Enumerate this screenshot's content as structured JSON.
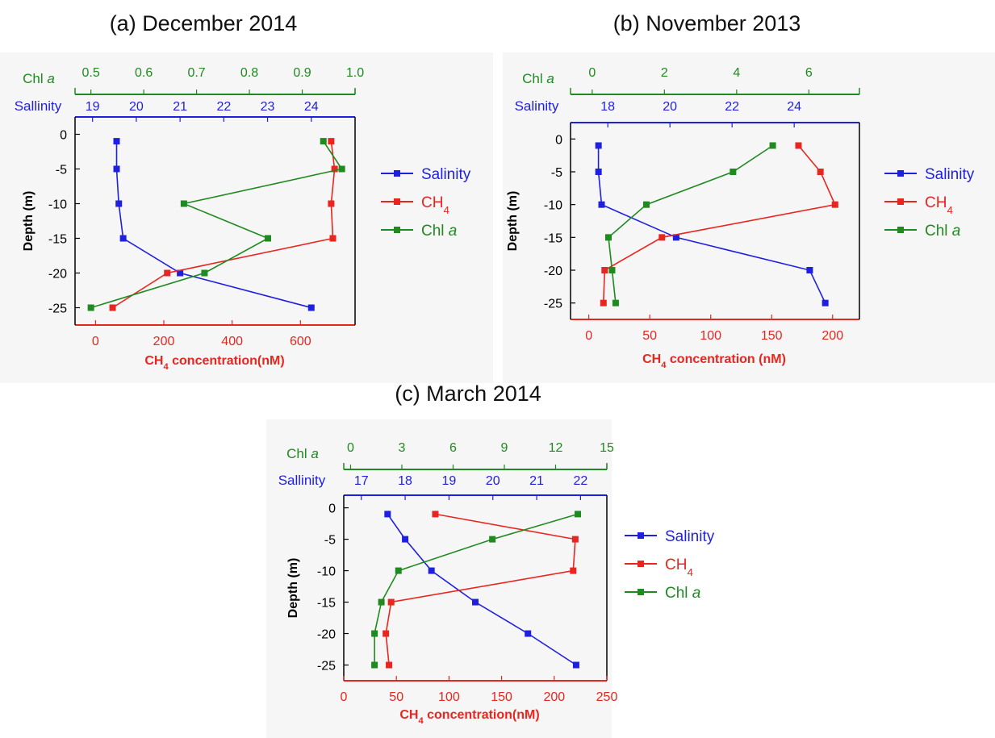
{
  "colors": {
    "salinity": "#1f1fe0",
    "ch4": "#e8261f",
    "chl": "#1f8a1f",
    "frame": "#000000"
  },
  "chart_data": [
    {
      "type": "line",
      "panel_title": "(a) December 2014",
      "xlabel": "CH4 concentration(nM)",
      "ylabel": "Depth (m)",
      "xlim": [
        -60,
        760
      ],
      "xticks": [
        0,
        200,
        400,
        600
      ],
      "ylim": [
        -27.5,
        2.5
      ],
      "yticks": [
        0,
        -5,
        -10,
        -15,
        -20,
        -25
      ],
      "salinity_axis": {
        "label": "Sallinity",
        "lim": [
          18.6,
          25.0
        ],
        "ticks": [
          19,
          20,
          21,
          22,
          23,
          24
        ]
      },
      "chl_axis": {
        "label": "Chl a",
        "lim": [
          0.47,
          1.0
        ],
        "ticks": [
          0.5,
          0.6,
          0.7,
          0.8,
          0.9,
          1.0
        ]
      },
      "legend": [
        "Salinity",
        "CH4",
        "Chl a"
      ],
      "series": [
        {
          "name": "Salinity",
          "axis": "salinity",
          "x": [
            19.55,
            19.55,
            19.6,
            19.7,
            21.0,
            24.0
          ],
          "y": [
            -1,
            -5,
            -10,
            -15,
            -20,
            -25
          ]
        },
        {
          "name": "CH4",
          "axis": "ch4",
          "x": [
            690,
            700,
            690,
            695,
            210,
            50
          ],
          "y": [
            -1,
            -5,
            -10,
            -15,
            -20,
            -25
          ]
        },
        {
          "name": "Chl a",
          "axis": "chl",
          "x": [
            0.94,
            0.975,
            0.676,
            0.835,
            0.715,
            0.5
          ],
          "y": [
            -1,
            -5,
            -10,
            -15,
            -20,
            -25
          ]
        }
      ]
    },
    {
      "type": "line",
      "panel_title": "(b) November 2013",
      "xlabel": "CH4 concentration (nM)",
      "ylabel": "Depth (m)",
      "xlim": [
        -15,
        222
      ],
      "xticks": [
        0,
        50,
        100,
        150,
        200
      ],
      "ylim": [
        -27.5,
        2.5
      ],
      "yticks": [
        0,
        -5,
        -10,
        -15,
        -20,
        -25
      ],
      "salinity_axis": {
        "label": "Salinity",
        "lim": [
          16.8,
          26.1
        ],
        "ticks": [
          18,
          20,
          22,
          24
        ]
      },
      "chl_axis": {
        "label": "Chl a",
        "lim": [
          -0.6,
          7.4
        ],
        "ticks": [
          0,
          2,
          4,
          6
        ]
      },
      "legend": [
        "Salinity",
        "CH4",
        "Chl a"
      ],
      "series": [
        {
          "name": "Salinity",
          "axis": "salinity",
          "x": [
            17.7,
            17.7,
            17.8,
            20.2,
            24.5,
            25.0
          ],
          "y": [
            -1,
            -5,
            -10,
            -15,
            -20,
            -25
          ]
        },
        {
          "name": "CH4",
          "axis": "ch4",
          "x": [
            172,
            190,
            202,
            60,
            13,
            12
          ],
          "y": [
            -1,
            -5,
            -10,
            -15,
            -20,
            -25
          ]
        },
        {
          "name": "Chl a",
          "axis": "chl",
          "x": [
            5.0,
            3.9,
            1.5,
            0.45,
            0.55,
            0.65
          ],
          "y": [
            -1,
            -5,
            -10,
            -15,
            -20,
            -25
          ]
        }
      ]
    },
    {
      "type": "line",
      "panel_title": "(c) March 2014",
      "xlabel": "CH4 concentration(nM)",
      "ylabel": "Depth (m)",
      "xlim": [
        0,
        250
      ],
      "xticks": [
        0,
        50,
        100,
        150,
        200,
        250
      ],
      "ylim": [
        -27.5,
        2.0
      ],
      "yticks": [
        0,
        -5,
        -10,
        -15,
        -20,
        -25
      ],
      "salinity_axis": {
        "label": "Sallinity",
        "lim": [
          16.6,
          22.6
        ],
        "ticks": [
          17,
          18,
          19,
          20,
          21,
          22
        ]
      },
      "chl_axis": {
        "label": "Chl a",
        "lim": [
          -0.4,
          15.0
        ],
        "ticks": [
          0,
          3,
          6,
          9,
          12,
          15
        ]
      },
      "legend": [
        "Salinity",
        "CH4",
        "Chl a"
      ],
      "series": [
        {
          "name": "Salinity",
          "axis": "salinity",
          "x": [
            17.6,
            18.0,
            18.6,
            19.6,
            20.8,
            21.9
          ],
          "y": [
            -1,
            -5,
            -10,
            -15,
            -20,
            -25
          ]
        },
        {
          "name": "CH4",
          "axis": "ch4",
          "x": [
            87,
            220,
            218,
            45,
            40,
            43
          ],
          "y": [
            -1,
            -5,
            -10,
            -15,
            -20,
            -25
          ]
        },
        {
          "name": "Chl a",
          "axis": "chl",
          "x": [
            13.3,
            8.3,
            2.8,
            1.8,
            1.4,
            1.4
          ],
          "y": [
            -1,
            -5,
            -10,
            -15,
            -20,
            -25
          ]
        }
      ]
    }
  ]
}
